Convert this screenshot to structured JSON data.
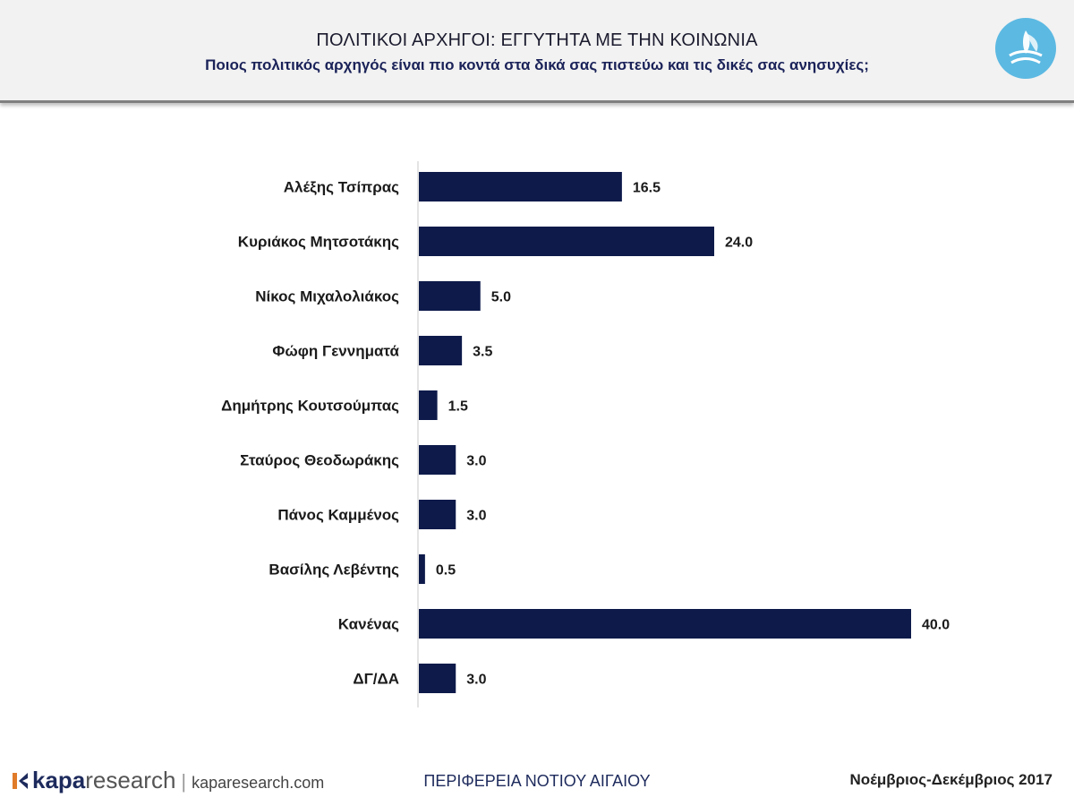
{
  "header": {
    "title": "ΠΟΛΙΤΙΚΟΙ ΑΡΧΗΓΟΙ: ΕΓΓΥΤΗΤΑ ΜΕ ΤΗΝ ΚΟΙΝΩΝΙΑ",
    "subtitle": "Ποιος πολιτικός αρχηγός είναι πιο κοντά στα δικά σας πιστεύω και τις δικές σας ανησυχίες;",
    "logo_icon": "region-emblem-icon"
  },
  "chart_data": {
    "type": "bar",
    "orientation": "horizontal",
    "categories": [
      "Αλέξης Τσίπρας",
      "Κυριάκος Μητσοτάκης",
      "Νίκος Μιχαλολιάκος",
      "Φώφη Γεννηματά",
      "Δημήτρης Κουτσούμπας",
      "Σταύρος Θεοδωράκης",
      "Πάνος Καμμένος",
      "Βασίλης Λεβέντης",
      "Κανένας",
      "ΔΓ/ΔΑ"
    ],
    "values": [
      16.5,
      24.0,
      5.0,
      3.5,
      1.5,
      3.0,
      3.0,
      0.5,
      40.0,
      3.0
    ],
    "value_labels": [
      "16.5",
      "24.0",
      "5.0",
      "3.5",
      "1.5",
      "3.0",
      "3.0",
      "0.5",
      "40.0",
      "3.0"
    ],
    "xlim": [
      0,
      40
    ],
    "bar_color": "#0d1a4a",
    "grid": false
  },
  "footer": {
    "brand_strong": "kapa",
    "brand_light": "research",
    "separator": "|",
    "url": "kaparesearch.com",
    "region": "ΠΕΡΙΦΕΡΕΙΑ ΝΟΤΙΟΥ ΑΙΓΑΙΟΥ",
    "date": "Νοέμβριος-Δεκέμβριος 2017"
  }
}
